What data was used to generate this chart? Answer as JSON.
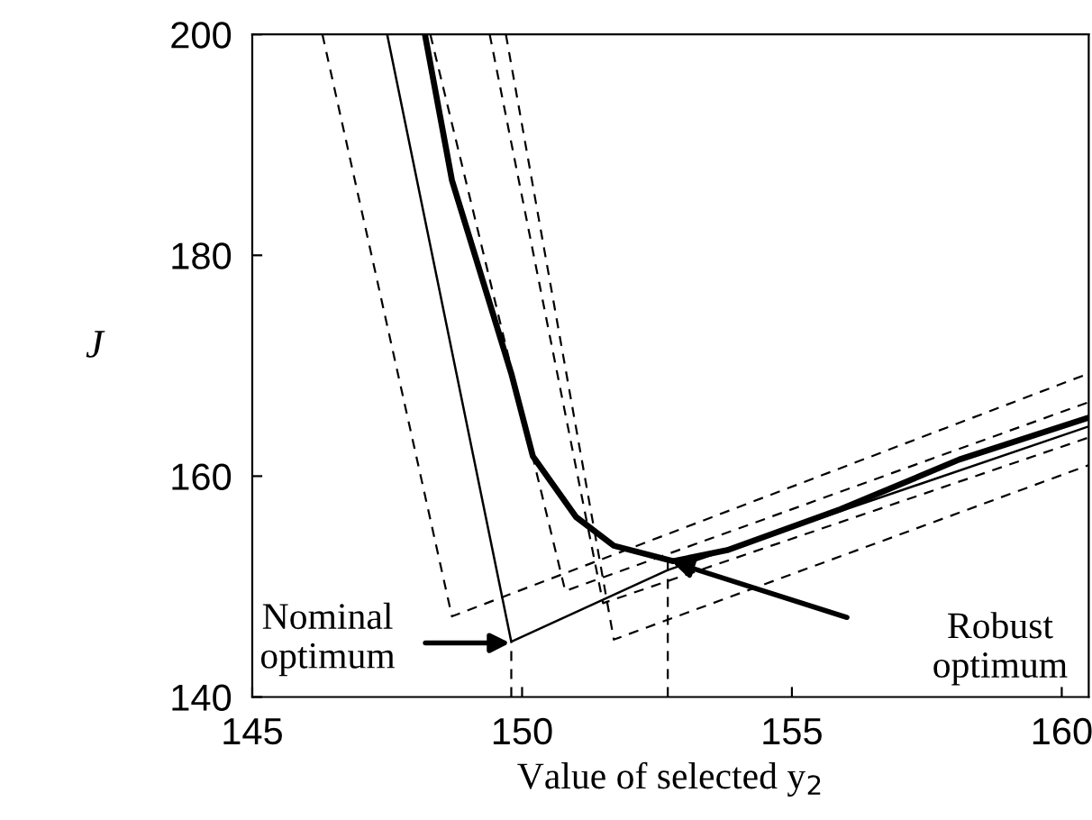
{
  "chart_data": {
    "type": "line",
    "xlabel": "Value of selected y$_{2}$",
    "ylabel": "J",
    "xlim": [
      145,
      160.5
    ],
    "ylim": [
      140,
      200
    ],
    "xticks": [
      145,
      150,
      155,
      160
    ],
    "yticks": [
      140,
      160,
      180,
      200
    ],
    "grid": false,
    "legend": false,
    "marker": "none",
    "series": [
      {
        "color": "#000000",
        "line_style": "solid",
        "x": [
          148.2,
          148.7,
          149.8,
          150.2,
          151.0,
          151.7,
          152.8,
          153.8,
          155.9,
          158.1,
          160.5
        ],
        "values": [
          200,
          186.8,
          169.3,
          161.8,
          156.3,
          153.7,
          152.3,
          153.3,
          157,
          161.5,
          165.3
        ]
      },
      {
        "color": "#000000",
        "line_style": "solid",
        "x": [
          147.5,
          149.8,
          152.7,
          160.5
        ],
        "values": [
          200,
          145,
          151.5,
          164.5
        ]
      },
      {
        "color": "#000000",
        "line_style": "dashed",
        "x": [
          146.3,
          148.7,
          160.5
        ],
        "values": [
          200,
          147.3,
          169.3
        ]
      },
      {
        "color": "#000000",
        "line_style": "dashed",
        "x": [
          148.3,
          150.8,
          160.5
        ],
        "values": [
          200,
          149.6,
          166.7
        ]
      },
      {
        "color": "#000000",
        "line_style": "dashed",
        "x": [
          149.4,
          151.5,
          160.5
        ],
        "values": [
          200,
          148.5,
          163.5
        ]
      },
      {
        "color": "#000000",
        "line_style": "dashed",
        "x": [
          149.7,
          151.7,
          160.5
        ],
        "values": [
          200,
          145.2,
          161.0
        ]
      },
      {
        "color": "#000000",
        "line_style": "dashed",
        "x": [
          149.8,
          149.8
        ],
        "values": [
          140,
          145
        ]
      },
      {
        "color": "#000000",
        "line_style": "dashed",
        "x": [
          152.7,
          152.7
        ],
        "values": [
          140,
          152.3
        ]
      }
    ],
    "annotations": [
      "Nominal\noptimum",
      "Robust\noptimum"
    ]
  }
}
